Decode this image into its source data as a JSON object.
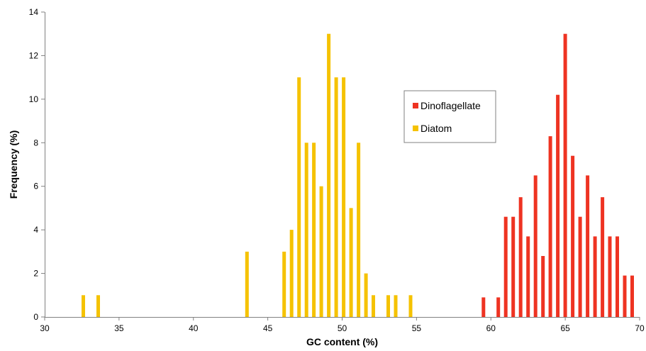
{
  "chart_data": {
    "type": "bar",
    "title": "",
    "xlabel": "GC content (%)",
    "ylabel": "Frequency (%)",
    "xlim": [
      30,
      70
    ],
    "ylim": [
      0,
      14
    ],
    "x_ticks": [
      "30",
      "35",
      "40",
      "45",
      "50",
      "55",
      "60",
      "65",
      "70"
    ],
    "y_ticks": [
      "0",
      "2",
      "4",
      "6",
      "8",
      "10",
      "12",
      "14"
    ],
    "grid": false,
    "legend_position": "center-right",
    "series": [
      {
        "name": "Dinoflagellate",
        "color": "#ee3322",
        "x": [
          59.5,
          60.5,
          61.0,
          61.5,
          62.0,
          62.5,
          63.0,
          63.5,
          64.0,
          64.5,
          65.0,
          65.5,
          66.0,
          66.5,
          67.0,
          67.5,
          68.0,
          68.5,
          69.0,
          69.5
        ],
        "values": [
          0.9,
          0.9,
          4.6,
          4.6,
          5.5,
          3.7,
          6.5,
          2.8,
          8.3,
          10.2,
          13.0,
          7.4,
          4.6,
          6.5,
          3.7,
          5.5,
          3.7,
          3.7,
          1.9,
          1.9
        ]
      },
      {
        "name": "Diatom",
        "color": "#f5c200",
        "x": [
          32.6,
          33.6,
          43.6,
          46.1,
          46.6,
          47.1,
          47.6,
          48.1,
          48.6,
          49.1,
          49.6,
          50.1,
          50.6,
          51.1,
          51.6,
          52.1,
          53.1,
          53.6,
          54.6
        ],
        "values": [
          1.0,
          1.0,
          3.0,
          3.0,
          4.0,
          11.0,
          8.0,
          8.0,
          6.0,
          13.0,
          11.0,
          11.0,
          5.0,
          8.0,
          2.0,
          1.0,
          1.0,
          1.0,
          1.0
        ]
      }
    ]
  }
}
